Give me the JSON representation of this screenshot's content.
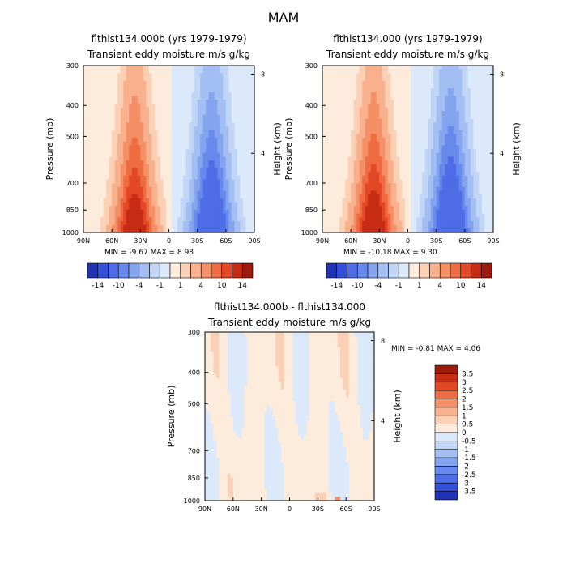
{
  "figure": {
    "title": "MAM"
  },
  "colors": {
    "pos": [
      "#fdebdc",
      "#fbd0b4",
      "#f8b18c",
      "#f48f66",
      "#ef6b42",
      "#e24826",
      "#c62c14",
      "#9c1b0c",
      "#6c0d04"
    ],
    "neg": [
      "#dbe9fb",
      "#c1d6f7",
      "#a2bef3",
      "#84a4ef",
      "#6889ec",
      "#4e6de6",
      "#3450d6",
      "#1f33b3",
      "#0d1a86",
      "#05084f"
    ]
  },
  "chart_data": [
    {
      "type": "contour",
      "id": "panel-a",
      "title": "flthist134.000b (yrs 1979-1979)",
      "subtitle": "Transient eddy moisture m/s g/kg",
      "xlabel": "",
      "ylabel": "Pressure (mb)",
      "ylabel_right": "Height (km)",
      "x_ticks": [
        "90N",
        "60N",
        "30N",
        "0",
        "30S",
        "60S",
        "90S"
      ],
      "y_ticks": [
        300,
        400,
        500,
        700,
        850,
        1000
      ],
      "y_right_ticks": [
        8,
        4
      ],
      "xlim": [
        90,
        -90
      ],
      "ylim": [
        1000,
        300
      ],
      "min_label": "MIN =",
      "min_value": "-9.67",
      "max_label": "MAX =",
      "max_value": "8.98",
      "extrema": {
        "min": -9.67,
        "max": 8.98
      },
      "colorbar_labels": [
        "-14",
        "-10",
        "-4",
        "-1",
        "1",
        "4",
        "10",
        "14"
      ],
      "levels": [
        -14,
        -12,
        -10,
        -8,
        -6,
        -4,
        -2,
        -1,
        1,
        2,
        4,
        6,
        8,
        10,
        12,
        14
      ]
    },
    {
      "type": "contour",
      "id": "panel-b",
      "title": "flthist134.000 (yrs 1979-1979)",
      "subtitle": "Transient eddy moisture m/s g/kg",
      "xlabel": "",
      "ylabel": "Pressure (mb)",
      "ylabel_right": "Height (km)",
      "x_ticks": [
        "90N",
        "60N",
        "30N",
        "0",
        "30S",
        "60S",
        "90S"
      ],
      "y_ticks": [
        300,
        400,
        500,
        700,
        850,
        1000
      ],
      "y_right_ticks": [
        8,
        4
      ],
      "xlim": [
        90,
        -90
      ],
      "ylim": [
        1000,
        300
      ],
      "min_label": "MIN =",
      "min_value": "-10.18",
      "max_label": "MAX =",
      "max_value": "9.30",
      "extrema": {
        "min": -10.18,
        "max": 9.3
      },
      "colorbar_labels": [
        "-14",
        "-10",
        "-4",
        "-1",
        "1",
        "4",
        "10",
        "14"
      ],
      "levels": [
        -14,
        -12,
        -10,
        -8,
        -6,
        -4,
        -2,
        -1,
        1,
        2,
        4,
        6,
        8,
        10,
        12,
        14
      ]
    },
    {
      "type": "contour",
      "id": "panel-diff",
      "title": "flthist134.000b - flthist134.000",
      "subtitle": "Transient eddy moisture m/s g/kg",
      "xlabel": "",
      "ylabel": "Pressure (mb)",
      "ylabel_right": "Height (km)",
      "x_ticks": [
        "90N",
        "60N",
        "30N",
        "0",
        "30S",
        "60S",
        "90S"
      ],
      "y_ticks": [
        300,
        400,
        500,
        700,
        850,
        1000
      ],
      "y_right_ticks": [
        8,
        4
      ],
      "xlim": [
        90,
        -90
      ],
      "ylim": [
        1000,
        300
      ],
      "min_label": "MIN =",
      "min_value": "-0.81",
      "max_label": "MAX =",
      "max_value": "4.06",
      "extrema": {
        "min": -0.81,
        "max": 4.06
      },
      "colorbar_labels": [
        "3.5",
        "3",
        "2.5",
        "2",
        "1.5",
        "1",
        "0.5",
        "0",
        "-0.5",
        "-1",
        "-1.5",
        "-2",
        "-2.5",
        "-3",
        "-3.5"
      ],
      "levels": [
        -3.5,
        -3,
        -2.5,
        -2,
        -1.5,
        -1,
        -0.5,
        0,
        0.5,
        1,
        1.5,
        2,
        2.5,
        3,
        3.5
      ]
    }
  ]
}
